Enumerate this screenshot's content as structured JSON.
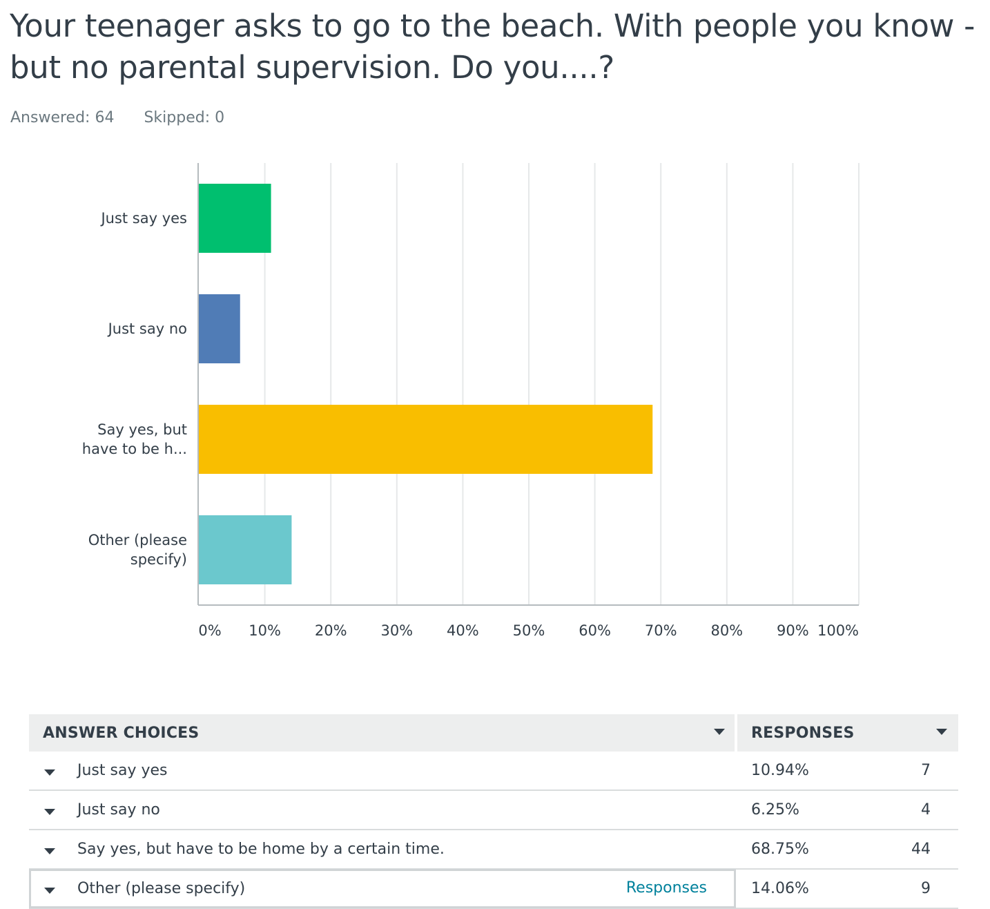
{
  "question": {
    "title": "Your teenager asks to go to the beach.  With people you know - but no parental supervision.  Do you....?",
    "answered_label": "Answered: 64",
    "skipped_label": "Skipped: 0"
  },
  "chart_data": {
    "type": "bar",
    "orientation": "horizontal",
    "categories": [
      "Just say yes",
      "Just say no",
      "Say yes, but have to be h...",
      "Other (please specify)"
    ],
    "category_lines": [
      [
        "Just say yes"
      ],
      [
        "Just say no"
      ],
      [
        "Say yes, but",
        "have to be h..."
      ],
      [
        "Other (please",
        "specify)"
      ]
    ],
    "values": [
      10.94,
      6.25,
      68.75,
      14.06
    ],
    "colors": [
      "#00bf6f",
      "#507cb6",
      "#f9be00",
      "#6bc8cd"
    ],
    "xlim": [
      0,
      100
    ],
    "xticks": [
      "0%",
      "10%",
      "20%",
      "30%",
      "40%",
      "50%",
      "60%",
      "70%",
      "80%",
      "90%",
      "100%"
    ],
    "grid": true,
    "legend": "none",
    "title": "",
    "xlabel": "",
    "ylabel": ""
  },
  "table": {
    "header_choices": "ANSWER CHOICES",
    "header_responses": "RESPONSES",
    "rows": [
      {
        "choice": "Just say yes",
        "percent": "10.94%",
        "count": "7"
      },
      {
        "choice": "Just say no",
        "percent": "6.25%",
        "count": "4"
      },
      {
        "choice": "Say yes, but have to be home by a certain time.",
        "percent": "68.75%",
        "count": "44"
      },
      {
        "choice": "Other (please specify)",
        "percent": "14.06%",
        "count": "9",
        "link": "Responses"
      }
    ]
  }
}
